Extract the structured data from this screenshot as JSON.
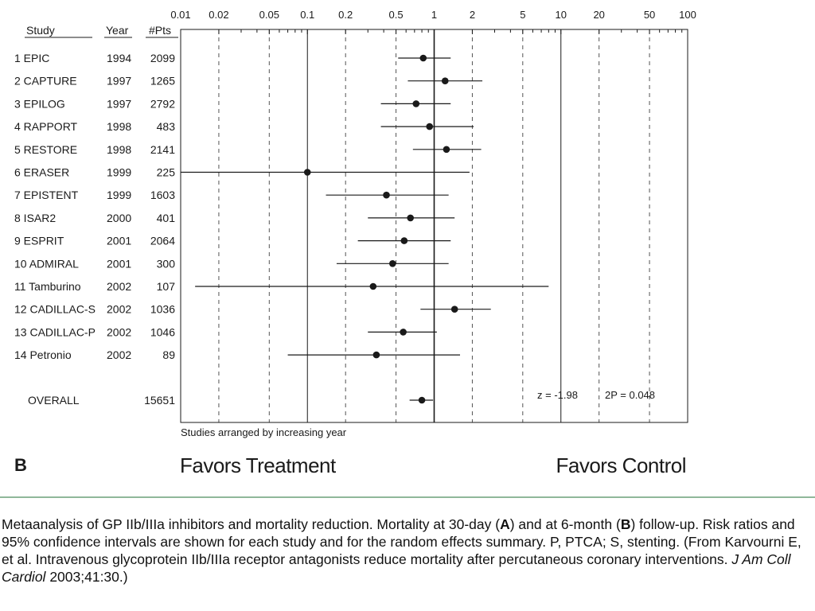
{
  "chart_data": {
    "type": "forest",
    "panel_label": "B",
    "scale": "log",
    "x_ticks": [
      "0.01",
      "0.02",
      "0.05",
      "0.1",
      "0.2",
      "0.5",
      "1",
      "2",
      "5",
      "10",
      "20",
      "50",
      "100"
    ],
    "x_tick_values": [
      0.01,
      0.02,
      0.05,
      0.1,
      0.2,
      0.5,
      1,
      2,
      5,
      10,
      20,
      50,
      100
    ],
    "xlim": [
      0.01,
      100
    ],
    "reference_line": 1,
    "dashed_lines": [
      0.02,
      0.05,
      0.2,
      0.5,
      2,
      5,
      20,
      50
    ],
    "solid_lines": [
      0.1,
      1,
      10
    ],
    "column_headers": {
      "study": "Study",
      "year": "Year",
      "pts": "#Pts"
    },
    "studies": [
      {
        "label": "1 EPIC",
        "year": "1994",
        "pts": "2099",
        "rr": 0.82,
        "lo": 0.52,
        "hi": 1.35
      },
      {
        "label": "2 CAPTURE",
        "year": "1997",
        "pts": "1265",
        "rr": 1.22,
        "lo": 0.62,
        "hi": 2.4
      },
      {
        "label": "3 EPILOG",
        "year": "1997",
        "pts": "2792",
        "rr": 0.72,
        "lo": 0.38,
        "hi": 1.35
      },
      {
        "label": "4 RAPPORT",
        "year": "1998",
        "pts": "483",
        "rr": 0.92,
        "lo": 0.38,
        "hi": 2.05
      },
      {
        "label": "5 RESTORE",
        "year": "1998",
        "pts": "2141",
        "rr": 1.25,
        "lo": 0.68,
        "hi": 2.35
      },
      {
        "label": "6 ERASER",
        "year": "1999",
        "pts": "225",
        "rr": 0.1,
        "lo": 0.01,
        "hi": 1.9
      },
      {
        "label": "7 EPISTENT",
        "year": "1999",
        "pts": "1603",
        "rr": 0.42,
        "lo": 0.14,
        "hi": 1.3
      },
      {
        "label": "8 ISAR2",
        "year": "2000",
        "pts": "401",
        "rr": 0.65,
        "lo": 0.3,
        "hi": 1.45
      },
      {
        "label": "9 ESPRIT",
        "year": "2001",
        "pts": "2064",
        "rr": 0.58,
        "lo": 0.25,
        "hi": 1.35
      },
      {
        "label": "10 ADMIRAL",
        "year": "2001",
        "pts": "300",
        "rr": 0.47,
        "lo": 0.17,
        "hi": 1.3
      },
      {
        "label": "11 Tamburino",
        "year": "2002",
        "pts": "107",
        "rr": 0.33,
        "lo": 0.013,
        "hi": 8
      },
      {
        "label": "12 CADILLAC-S",
        "year": "2002",
        "pts": "1036",
        "rr": 1.45,
        "lo": 0.78,
        "hi": 2.8
      },
      {
        "label": "13 CADILLAC-P",
        "year": "2002",
        "pts": "1046",
        "rr": 0.57,
        "lo": 0.3,
        "hi": 1.05
      },
      {
        "label": "14 Petronio",
        "year": "2002",
        "pts": "89",
        "rr": 0.35,
        "lo": 0.07,
        "hi": 1.6
      }
    ],
    "overall": {
      "label": "OVERALL",
      "pts": "15651",
      "rr": 0.8,
      "lo": 0.64,
      "hi": 0.98
    },
    "z_text": "z = -1.98",
    "p_text": "2P = 0.048",
    "footnote": "Studies arranged by increasing year",
    "favors_left": "Favors Treatment",
    "favors_right": "Favors Control"
  },
  "caption": {
    "part1": "Metaanalysis of GP IIb/IIIa inhibitors and mortality reduction. Mortality at 30-day (",
    "bold_a": "A",
    "part2": ") and at 6-month (",
    "bold_b": "B",
    "part3": ") follow-up. Risk ratios and 95% confidence intervals are shown for each study and for the random effects summary. P, PTCA; S, stenting. (From Karvourni E, et al. Intravenous glycoprotein IIb/IIIa receptor antagonists reduce mortality after percutaneous coronary interventions. ",
    "journal": "J Am Coll Cardiol",
    "part4": " 2003;41:30.)"
  },
  "colors": {
    "ink": "#1a1a1a",
    "separator": "#8fb89a"
  }
}
